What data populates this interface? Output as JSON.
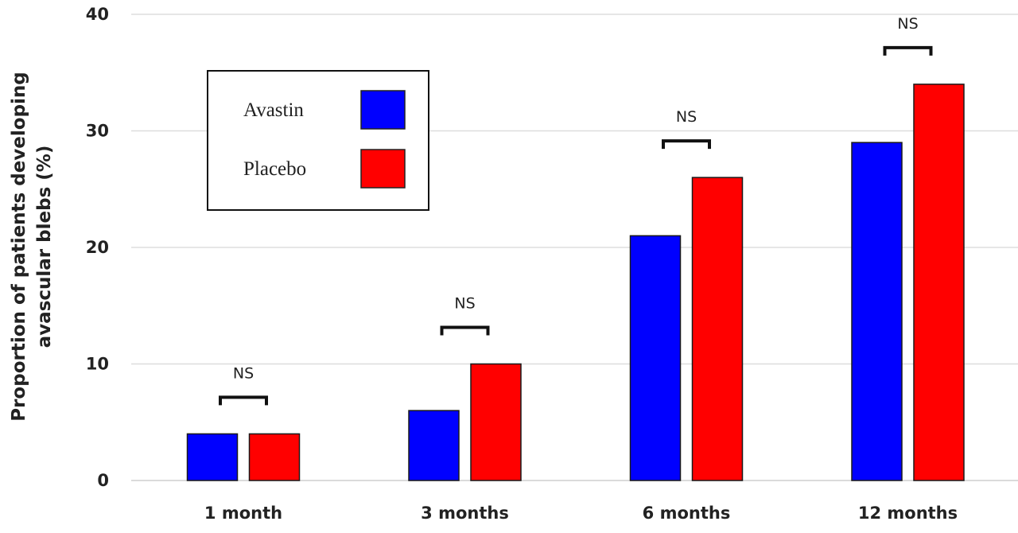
{
  "chart_data": {
    "type": "bar",
    "categories": [
      "1 month",
      "3 months",
      "6 months",
      "12 months"
    ],
    "series": [
      {
        "name": "Avastin",
        "values": [
          4,
          6,
          21,
          29
        ],
        "color": "#0000ff"
      },
      {
        "name": "Placebo",
        "values": [
          4,
          10,
          26,
          34
        ],
        "color": "#ff0000"
      }
    ],
    "title": "",
    "xlabel": "",
    "ylabel_lines": [
      "Proportion of patients developing",
      "avascular blebs (%)"
    ],
    "ylim": [
      0,
      40
    ],
    "yticks": [
      0,
      10,
      20,
      30,
      40
    ],
    "grid": true,
    "legend": "top-left",
    "annotations": [
      "NS",
      "NS",
      "NS",
      "NS"
    ]
  }
}
